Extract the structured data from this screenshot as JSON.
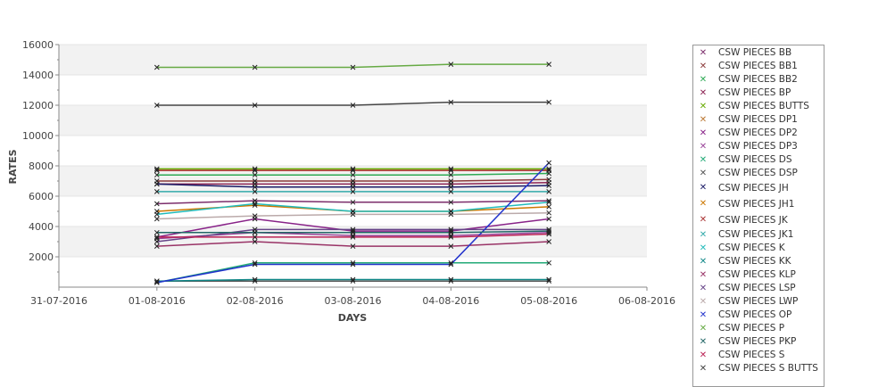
{
  "chart_data": {
    "type": "line",
    "title": "",
    "xlabel": "DAYS",
    "ylabel": "RATES",
    "x_ticks": [
      "31-07-2016",
      "01-08-2016",
      "02-08-2016",
      "03-08-2016",
      "04-08-2016",
      "05-08-2016",
      "06-08-2016"
    ],
    "x": [
      "01-08-2016",
      "02-08-2016",
      "03-08-2016",
      "04-08-2016",
      "05-08-2016"
    ],
    "y_ticks": [
      2000,
      4000,
      6000,
      8000,
      10000,
      12000,
      14000,
      16000
    ],
    "ylim": [
      0,
      16000
    ],
    "grid": true,
    "legend_position": "right",
    "series": [
      {
        "name": "CSW PIECES BB",
        "color": "#7b2d6b",
        "values": [
          5500,
          5700,
          5600,
          5600,
          5700
        ]
      },
      {
        "name": "CSW PIECES BB1",
        "color": "#8b3a3a",
        "values": [
          7000,
          7000,
          7000,
          7000,
          7100
        ]
      },
      {
        "name": "CSW PIECES BB2",
        "color": "#2eaa55",
        "values": [
          7400,
          7400,
          7400,
          7400,
          7500
        ]
      },
      {
        "name": "CSW PIECES BP",
        "color": "#8b2252",
        "values": [
          6800,
          6800,
          6800,
          6800,
          6900
        ]
      },
      {
        "name": "CSW PIECES BUTTS",
        "color": "#66aa00",
        "values": [
          7800,
          7800,
          7800,
          7800,
          7800
        ]
      },
      {
        "name": "CSW PIECES DP1",
        "color": "#bb7733",
        "values": [
          7700,
          7700,
          7700,
          7700,
          7700
        ]
      },
      {
        "name": "CSW PIECES DP2",
        "color": "#882288",
        "values": [
          3300,
          4500,
          3700,
          3700,
          4500
        ]
      },
      {
        "name": "CSW PIECES DP3",
        "color": "#994499",
        "values": [
          3200,
          3600,
          3400,
          3400,
          3600
        ]
      },
      {
        "name": "CSW PIECES DS",
        "color": "#22aa77",
        "values": [
          300,
          1600,
          1600,
          1600,
          1600
        ]
      },
      {
        "name": "CSW PIECES DSP",
        "color": "#555555",
        "values": [
          400,
          400,
          400,
          400,
          400
        ]
      },
      {
        "name": "CSW PIECES JH",
        "color": "#1a1a66",
        "values": [
          6800,
          6600,
          6600,
          6600,
          6700
        ]
      },
      {
        "name": "CSW PIECES JH1",
        "color": "#cc7700",
        "values": [
          5000,
          5400,
          5000,
          5000,
          5300
        ]
      },
      {
        "name": "CSW PIECES JK",
        "color": "#aa3333",
        "values": [
          7700,
          7700,
          7700,
          7700,
          7700
        ]
      },
      {
        "name": "CSW PIECES JK1",
        "color": "#33aaaa",
        "values": [
          6300,
          6300,
          6300,
          6300,
          6300
        ]
      },
      {
        "name": "CSW PIECES K",
        "color": "#22bbbb",
        "values": [
          4800,
          5500,
          5000,
          5000,
          5600
        ]
      },
      {
        "name": "CSW PIECES KK",
        "color": "#118888",
        "values": [
          400,
          500,
          500,
          500,
          500
        ]
      },
      {
        "name": "CSW PIECES KLP",
        "color": "#993366",
        "values": [
          2700,
          3000,
          2700,
          2700,
          3000
        ]
      },
      {
        "name": "CSW PIECES LSP",
        "color": "#664488",
        "values": [
          3000,
          3800,
          3800,
          3800,
          3800
        ]
      },
      {
        "name": "CSW PIECES LWP",
        "color": "#bbaaaa",
        "values": [
          4500,
          4700,
          4800,
          4800,
          4900
        ]
      },
      {
        "name": "CSW PIECES OP",
        "color": "#2233cc",
        "values": [
          300,
          1500,
          1500,
          1500,
          8200
        ]
      },
      {
        "name": "CSW PIECES P",
        "color": "#66aa44",
        "values": [
          14500,
          14500,
          14500,
          14700,
          14700
        ]
      },
      {
        "name": "CSW PIECES PKP",
        "color": "#226666",
        "values": [
          3600,
          3600,
          3600,
          3600,
          3700
        ]
      },
      {
        "name": "CSW PIECES S",
        "color": "#bb2255",
        "values": [
          3300,
          3300,
          3300,
          3300,
          3500
        ]
      },
      {
        "name": "CSW PIECES S BUTTS",
        "color": "#444444",
        "values": [
          12000,
          12000,
          12000,
          12200,
          12200
        ]
      }
    ]
  }
}
